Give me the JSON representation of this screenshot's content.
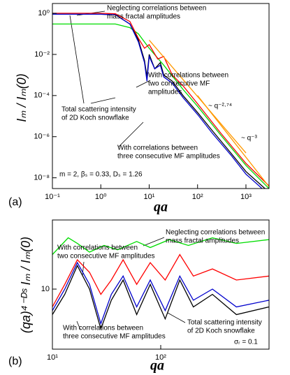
{
  "chart_data": [
    {
      "type": "line",
      "panel_label": "(a)",
      "xlabel": "qa",
      "ylabel": "Iₘ / Iₘ(0)",
      "log_x": true,
      "log_y": true,
      "xlim": [
        0.1,
        3000
      ],
      "ylim": [
        3e-09,
        3
      ],
      "xticks": [
        {
          "value": 0.1,
          "label": "10⁻¹"
        },
        {
          "value": 1,
          "label": "10⁰"
        },
        {
          "value": 10,
          "label": "10¹"
        },
        {
          "value": 100,
          "label": "10²"
        },
        {
          "value": 1000,
          "label": "10³"
        }
      ],
      "yticks": [
        {
          "value": 1,
          "label": "10⁰"
        },
        {
          "value": 0.01,
          "label": "10⁻²"
        },
        {
          "value": 0.0001,
          "label": "10⁻⁴"
        },
        {
          "value": 1e-06,
          "label": "10⁻⁶"
        },
        {
          "value": 1e-08,
          "label": "10⁻⁸"
        }
      ],
      "series": [
        {
          "color": "#00dd00",
          "x": [
            0.1,
            1,
            2,
            4,
            6,
            10,
            20,
            50,
            100,
            300,
            1000,
            3000
          ],
          "values": [
            0.3,
            0.3,
            0.3,
            0.2,
            0.1,
            0.02,
            0.003,
            0.0002,
            3e-05,
            1.2e-06,
            4e-08,
            3e-09
          ]
        },
        {
          "color": "#ff0000",
          "x": [
            0.1,
            1,
            2,
            4,
            6,
            8,
            10,
            15,
            20,
            30,
            50,
            100,
            300,
            1000,
            3000
          ],
          "values": [
            1,
            1,
            0.95,
            0.4,
            0.06,
            0.02,
            0.03,
            0.006,
            0.008,
            0.001,
            0.0003,
            4e-05,
            1.5e-06,
            5e-08,
            4e-09
          ]
        },
        {
          "color": "#000000",
          "x": [
            0.1,
            1,
            2,
            4,
            6,
            8,
            9,
            10,
            13,
            17,
            20,
            30,
            50,
            100,
            200,
            500,
            1000,
            3000
          ],
          "values": [
            0.9,
            0.9,
            0.85,
            0.3,
            0.05,
            0.005,
            0.0008,
            0.01,
            0.002,
            0.004,
            0.001,
            0.0005,
            0.0001,
            1.5e-05,
            2e-06,
            1.5e-07,
            2e-08,
            2e-09
          ]
        },
        {
          "color": "#0000cc",
          "x": [
            0.1,
            1,
            2,
            4,
            6,
            8,
            9,
            10,
            13,
            17,
            20,
            30,
            50,
            100,
            200,
            500,
            1000,
            3000
          ],
          "values": [
            0.9,
            0.9,
            0.85,
            0.3,
            0.04,
            0.004,
            0.0005,
            0.008,
            0.002,
            0.003,
            0.0008,
            0.0004,
            8e-05,
            1.2e-05,
            1.5e-06,
            1.2e-07,
            1.5e-08,
            1.5e-09
          ]
        },
        {
          "color": "#ff9900",
          "x": [
            10,
            1000
          ],
          "values": [
            0.05,
            1.6e-07
          ]
        },
        {
          "color": "#ff9900",
          "x": [
            100,
            3000
          ],
          "values": [
            0.0001,
            3.7e-09
          ]
        }
      ],
      "annotations": [
        {
          "lines": [
            "Neglecting correlations between",
            "mass fractal amplitudes"
          ]
        },
        {
          "lines": [
            "With correlations between",
            "two consecutive MF",
            "amplitudes"
          ]
        },
        {
          "lines": [
            "Total scattering intensity",
            "of 2D Koch snowflake"
          ]
        },
        {
          "lines": [
            "~ q⁻²·⁷⁴"
          ]
        },
        {
          "lines": [
            "~ q⁻³"
          ]
        },
        {
          "lines": [
            "With correlations between",
            "three consecutive MF amplitudes"
          ]
        },
        {
          "lines": [
            "m = 2, βₛ = 0.33, Dₛ = 1.26"
          ]
        }
      ]
    },
    {
      "type": "line",
      "panel_label": "(b)",
      "xlabel": "qa",
      "ylabel": "(qa)⁴⁻ᴰˢ Iₘ / Iₘ(0)",
      "log_x": true,
      "log_y": true,
      "xlim": [
        10,
        1000
      ],
      "ylim": [
        3,
        40
      ],
      "xticks": [
        {
          "value": 10,
          "label": "10¹"
        },
        {
          "value": 100,
          "label": "10²"
        }
      ],
      "yticks": [
        10
      ],
      "series": [
        {
          "color": "#00dd00",
          "x": [
            10,
            14,
            17,
            22,
            30,
            40,
            60,
            80,
            120,
            180,
            300,
            500,
            1000
          ],
          "values": [
            20,
            28,
            25,
            21,
            24,
            22,
            26,
            23,
            27,
            24,
            28,
            25,
            27
          ]
        },
        {
          "color": "#ff0000",
          "x": [
            10,
            13,
            17,
            22,
            28,
            35,
            45,
            60,
            80,
            110,
            150,
            200,
            300,
            500,
            1000
          ],
          "values": [
            7,
            11,
            18,
            14,
            9,
            12,
            18,
            11,
            17,
            12,
            20,
            13,
            15,
            12,
            13
          ]
        },
        {
          "color": "#000000",
          "x": [
            10,
            13,
            17,
            22,
            28,
            35,
            45,
            60,
            80,
            110,
            150,
            200,
            300,
            500,
            1000
          ],
          "values": [
            6,
            9,
            16,
            10,
            4.5,
            8,
            12,
            6,
            11,
            5.5,
            12,
            7,
            9,
            6,
            7
          ]
        },
        {
          "color": "#0000cc",
          "x": [
            10,
            13,
            17,
            22,
            28,
            35,
            45,
            60,
            80,
            110,
            150,
            200,
            300,
            500,
            1000
          ],
          "values": [
            6.5,
            10,
            17,
            11,
            5,
            9,
            13,
            7,
            12,
            6.5,
            13,
            8,
            10,
            7,
            8
          ]
        }
      ],
      "annotations": [
        {
          "lines": [
            "Neglecting correlations between",
            "mass fractal amplitudes"
          ]
        },
        {
          "lines": [
            "With correlations between",
            "two consecutive MF amplitudes"
          ]
        },
        {
          "lines": [
            "Total scattering intensity",
            "of 2D Koch snowflake"
          ]
        },
        {
          "lines": [
            "With correlations between",
            "three consecutive MF amplitudes"
          ]
        },
        {
          "lines": [
            "σᵣ = 0.1"
          ]
        }
      ]
    }
  ]
}
